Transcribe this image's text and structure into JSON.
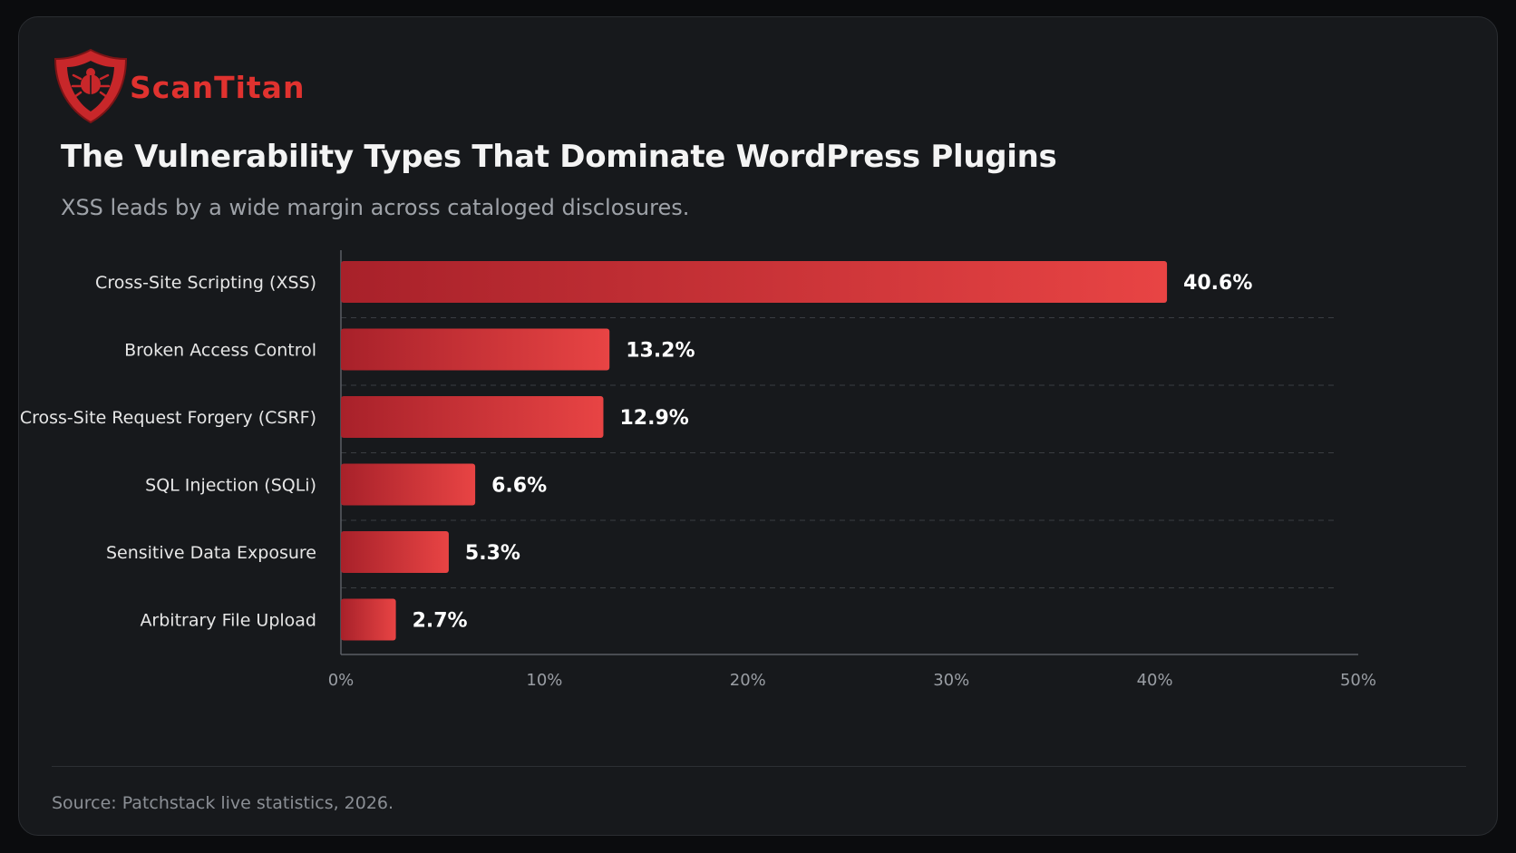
{
  "brand": {
    "name": "ScanTitan",
    "accent_color": "#e0322f",
    "logo_icon": "shield-bug-icon"
  },
  "title": "The Vulnerability Types That Dominate WordPress Plugins",
  "subtitle": "XSS leads by a wide margin across cataloged disclosures.",
  "source": "Source: Patchstack live statistics, 2026.",
  "chart_data": {
    "type": "bar",
    "orientation": "horizontal",
    "categories": [
      "Cross-Site Scripting (XSS)",
      "Broken Access Control",
      "Cross-Site Request Forgery (CSRF)",
      "SQL Injection (SQLi)",
      "Sensitive Data Exposure",
      "Arbitrary File Upload"
    ],
    "values": [
      40.6,
      13.2,
      12.9,
      6.6,
      5.3,
      2.7
    ],
    "value_labels": [
      "40.6%",
      "13.2%",
      "12.9%",
      "6.6%",
      "5.3%",
      "2.7%"
    ],
    "x_ticks": [
      0,
      10,
      20,
      30,
      40,
      50
    ],
    "x_tick_labels": [
      "0%",
      "10%",
      "20%",
      "30%",
      "40%",
      "50%"
    ],
    "xlim": [
      0,
      50
    ],
    "grid": "horizontal dashed separators",
    "bar_color_start": "#a8212a",
    "bar_color_end": "#e84444"
  }
}
